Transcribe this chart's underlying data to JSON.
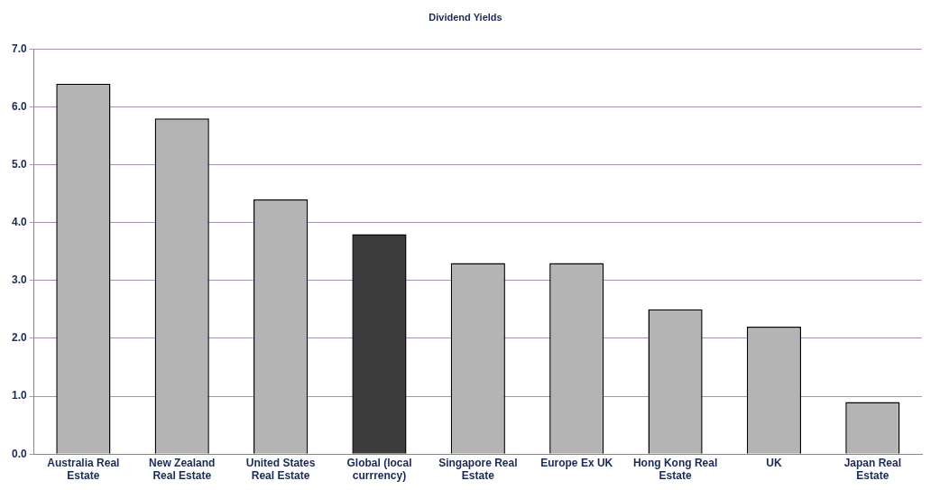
{
  "chart_data": {
    "type": "bar",
    "title": "Dividend Yields",
    "categories": [
      "Australia Real Estate",
      "New Zealand Real Estate",
      "United States Real Estate",
      "Global (local currrency)",
      "Singapore Real Estate",
      "Europe Ex UK",
      "Hong Kong Real Estate",
      "UK",
      "Japan Real Estate"
    ],
    "values": [
      6.4,
      5.8,
      4.4,
      3.8,
      3.3,
      3.3,
      2.5,
      2.2,
      0.9
    ],
    "colors": [
      "#b4b4b4",
      "#b4b4b4",
      "#b4b4b4",
      "#3c3c3c",
      "#b4b4b4",
      "#b4b4b4",
      "#b4b4b4",
      "#b4b4b4",
      "#b4b4b4"
    ],
    "ylim": [
      0,
      7
    ],
    "yticks": [
      {
        "value": 0,
        "label": "0.0"
      },
      {
        "value": 1,
        "label": "1.0"
      },
      {
        "value": 2,
        "label": "2.0"
      },
      {
        "value": 3,
        "label": "3.0"
      },
      {
        "value": 4,
        "label": "4.0"
      },
      {
        "value": 5,
        "label": "5.0"
      },
      {
        "value": 6,
        "label": "6.0"
      },
      {
        "value": 7,
        "label": "7.0"
      }
    ],
    "grid": "y",
    "legend": false
  }
}
